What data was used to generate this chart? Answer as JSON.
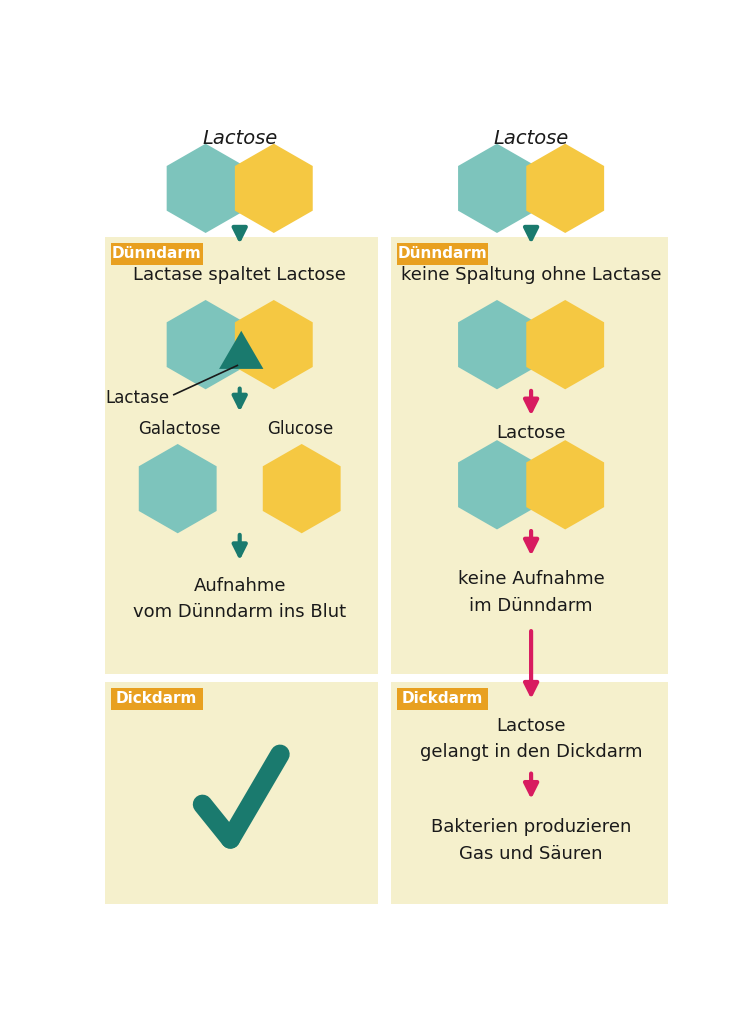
{
  "bg_white": "#FFFFFF",
  "bg_box": "#F5F0CC",
  "teal": "#7DC4BC",
  "yellow": "#F5C842",
  "dark_teal": "#1A7A6E",
  "orange_label": "#E8A020",
  "pink": "#D81B60",
  "text_color": "#1A1A1A",
  "label_text": "#FFFFFF",
  "title_left": "Lactose",
  "title_right": "Lactose",
  "label_dunndarm": "Dünndarm",
  "label_dickdarm": "Dickdarm",
  "left_text1": "Lactase spaltet Lactose",
  "left_galactose": "Galactose",
  "left_glucose": "Glucose",
  "left_lactase": "Lactase",
  "left_aufnahme": "Aufnahme\nvom Dünndarm ins Blut",
  "right_text1": "keine Spaltung ohne Lactase",
  "right_lactose": "Lactose",
  "right_kein": "keine Aufnahme\nim Dünndarm",
  "right_dickdarm_text": "Lactose\ngelangt in den Dickdarm",
  "right_bakterien": "Bakterien produzieren\nGas und Säuren"
}
